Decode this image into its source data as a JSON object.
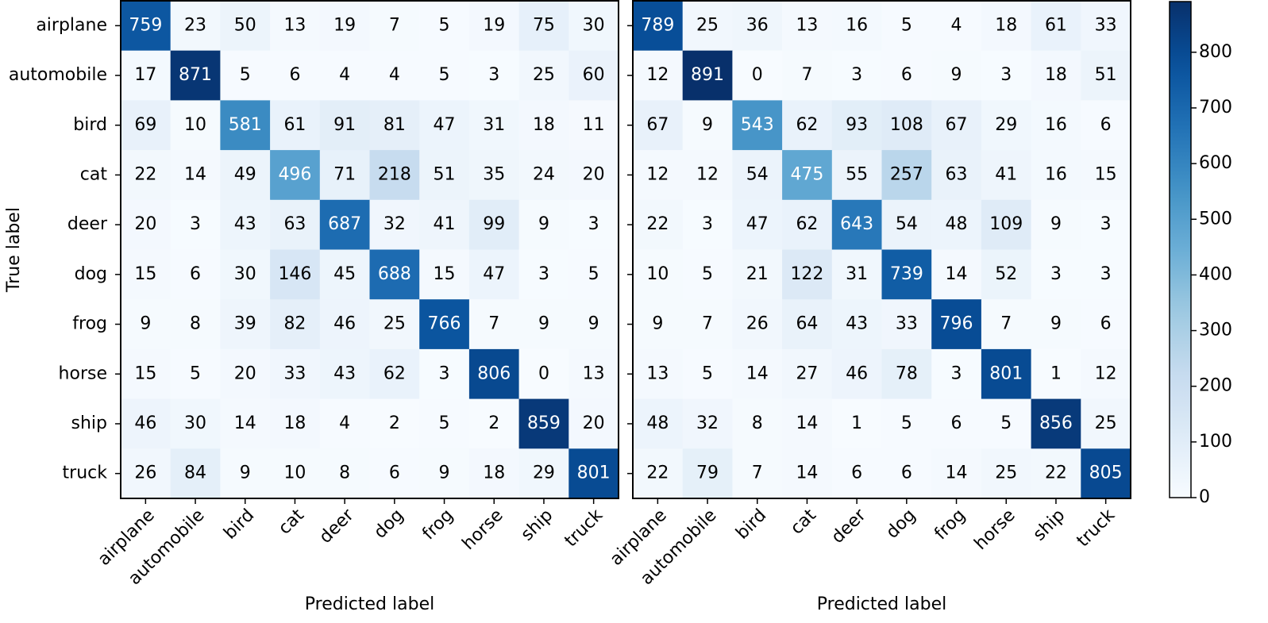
{
  "chart_data": [
    {
      "type": "heatmap",
      "xlabel": "Predicted label",
      "ylabel": "True label",
      "x": [
        "airplane",
        "automobile",
        "bird",
        "cat",
        "deer",
        "dog",
        "frog",
        "horse",
        "ship",
        "truck"
      ],
      "y": [
        "airplane",
        "automobile",
        "bird",
        "cat",
        "deer",
        "dog",
        "frog",
        "horse",
        "ship",
        "truck"
      ],
      "values": [
        [
          759,
          23,
          50,
          13,
          19,
          7,
          5,
          19,
          75,
          30
        ],
        [
          17,
          871,
          5,
          6,
          4,
          4,
          5,
          3,
          25,
          60
        ],
        [
          69,
          10,
          581,
          61,
          91,
          81,
          47,
          31,
          18,
          11
        ],
        [
          22,
          14,
          49,
          496,
          71,
          218,
          51,
          35,
          24,
          20
        ],
        [
          20,
          3,
          43,
          63,
          687,
          32,
          41,
          99,
          9,
          3
        ],
        [
          15,
          6,
          30,
          146,
          45,
          688,
          15,
          47,
          3,
          5
        ],
        [
          9,
          8,
          39,
          82,
          46,
          25,
          766,
          7,
          9,
          9
        ],
        [
          15,
          5,
          20,
          33,
          43,
          62,
          3,
          806,
          0,
          13
        ],
        [
          46,
          30,
          14,
          18,
          4,
          2,
          5,
          2,
          859,
          20
        ],
        [
          26,
          84,
          9,
          10,
          8,
          6,
          9,
          18,
          29,
          801
        ]
      ],
      "colormap": "Blues",
      "clim": [
        0,
        891
      ]
    },
    {
      "type": "heatmap",
      "xlabel": "Predicted label",
      "x": [
        "airplane",
        "automobile",
        "bird",
        "cat",
        "deer",
        "dog",
        "frog",
        "horse",
        "ship",
        "truck"
      ],
      "values": [
        [
          789,
          25,
          36,
          13,
          16,
          5,
          4,
          18,
          61,
          33
        ],
        [
          12,
          891,
          0,
          7,
          3,
          6,
          9,
          3,
          18,
          51
        ],
        [
          67,
          9,
          543,
          62,
          93,
          108,
          67,
          29,
          16,
          6
        ],
        [
          12,
          12,
          54,
          475,
          55,
          257,
          63,
          41,
          16,
          15
        ],
        [
          22,
          3,
          47,
          62,
          643,
          54,
          48,
          109,
          9,
          3
        ],
        [
          10,
          5,
          21,
          122,
          31,
          739,
          14,
          52,
          3,
          3
        ],
        [
          9,
          7,
          26,
          64,
          43,
          33,
          796,
          7,
          9,
          6
        ],
        [
          13,
          5,
          14,
          27,
          46,
          78,
          3,
          801,
          1,
          12
        ],
        [
          48,
          32,
          8,
          14,
          1,
          5,
          6,
          5,
          856,
          25
        ],
        [
          22,
          79,
          7,
          14,
          6,
          6,
          14,
          25,
          22,
          805
        ]
      ],
      "colormap": "Blues",
      "clim": [
        0,
        891
      ],
      "colorbar_ticks": [
        0,
        100,
        200,
        300,
        400,
        500,
        600,
        700,
        800
      ]
    }
  ]
}
